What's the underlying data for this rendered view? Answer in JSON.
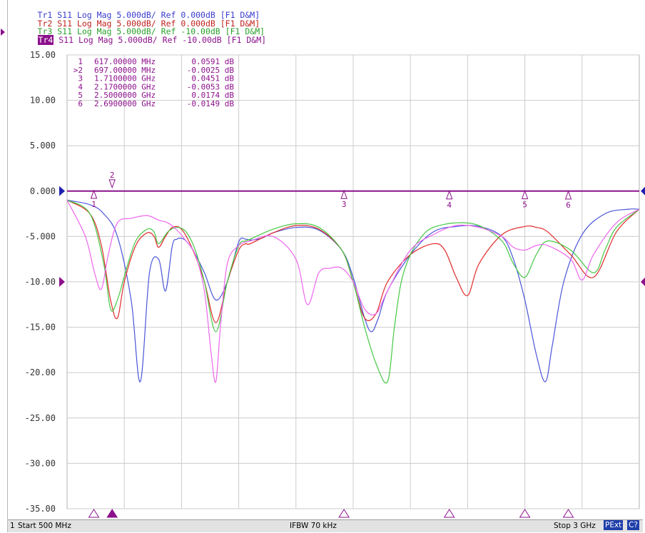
{
  "trace_headers": [
    {
      "id": "Tr1",
      "label": "Tr1",
      "text": " S11 Log Mag 5.000dB/ Ref 0.000dB [F1 D&M]",
      "color": "#3b3bd0"
    },
    {
      "id": "Tr2",
      "label": "Tr2",
      "text": " S11 Log Mag 5.000dB/ Ref 0.000dB [F1 D&M]",
      "color": "#c02020"
    },
    {
      "id": "Tr3",
      "label": "Tr3",
      "text": " S11 Log Mag 5.000dB/ Ref -10.00dB [F1 D&M]",
      "color": "#2aa02a"
    },
    {
      "id": "Tr4",
      "label": "Tr4",
      "text": " S11 Log Mag 5.000dB/ Ref -10.00dB [F1 D&M]",
      "color": "#8c108c",
      "active": true
    }
  ],
  "marker_table": [
    {
      "num": "1",
      "freq": "617.00000 MHz",
      "value": "0.0591 dB"
    },
    {
      "num": ">2",
      "freq": "697.00000 MHz",
      "value": "-0.0025 dB"
    },
    {
      "num": "3",
      "freq": "1.7100000 GHz",
      "value": "0.0451 dB"
    },
    {
      "num": "4",
      "freq": "2.1700000 GHz",
      "value": "-0.0053 dB"
    },
    {
      "num": "5",
      "freq": "2.5000000 GHz",
      "value": "0.0174 dB"
    },
    {
      "num": "6",
      "freq": "2.6900000 GHz",
      "value": "-0.0149 dB"
    }
  ],
  "status_bar": {
    "channel": "1",
    "start": "Start 500 MHz",
    "ifbw": "IFBW 70 kHz",
    "stop": "Stop 3 GHz",
    "pext": "PExt",
    "cal": "C?"
  },
  "colors": {
    "grid": "#cccccc",
    "axis_marker": "#8c108c",
    "ref_marker": "#1f1fb0"
  },
  "chart_data": {
    "type": "line",
    "x_unit": "GHz",
    "xlim": [
      0.5,
      3.0
    ],
    "ylim": [
      -35,
      15
    ],
    "y_ticks": [
      15,
      10,
      5,
      0,
      -5,
      -10,
      -15,
      -20,
      -25,
      -30,
      -35
    ],
    "y_tick_labels": [
      "15.00",
      "10.00",
      "5.000",
      "0.000",
      "-5.000",
      "-10.00",
      "-15.00",
      "-20.00",
      "-25.00",
      "-30.00",
      "-35.00"
    ],
    "grid": true,
    "markers": [
      {
        "label": "1",
        "x": 0.617,
        "y": 0.0591
      },
      {
        "label": "2",
        "x": 0.697,
        "y": -0.0025
      },
      {
        "label": "3",
        "x": 1.71,
        "y": 0.0451
      },
      {
        "label": "4",
        "x": 2.17,
        "y": -0.0053
      },
      {
        "label": "5",
        "x": 2.5,
        "y": 0.0174
      },
      {
        "label": "6",
        "x": 2.69,
        "y": -0.0149
      }
    ],
    "series": [
      {
        "id": "Tr1",
        "color": "#4a55d8",
        "x": [
          0.5,
          0.6,
          0.66,
          0.72,
          0.78,
          0.82,
          0.86,
          0.9,
          0.93,
          0.96,
          0.98,
          1.0,
          1.02,
          1.05,
          1.1,
          1.15,
          1.2,
          1.25,
          1.28,
          1.3,
          1.35,
          1.4,
          1.5,
          1.6,
          1.7,
          1.75,
          1.8,
          1.83,
          1.86,
          1.9,
          2.0,
          2.1,
          2.2,
          2.3,
          2.4,
          2.45,
          2.5,
          2.55,
          2.59,
          2.62,
          2.67,
          2.75,
          2.85,
          2.95,
          3.0
        ],
        "y": [
          -1.0,
          -1.5,
          -2.5,
          -5.0,
          -12.0,
          -21.0,
          -9.0,
          -7.5,
          -11.0,
          -6.0,
          -5.3,
          -5.2,
          -5.5,
          -6.5,
          -9.0,
          -12.0,
          -10.0,
          -5.6,
          -5.3,
          -5.4,
          -5.2,
          -4.6,
          -4.0,
          -4.3,
          -6.5,
          -9.5,
          -14.0,
          -15.5,
          -14.0,
          -11.0,
          -7.0,
          -4.5,
          -3.9,
          -3.9,
          -5.0,
          -7.5,
          -12.0,
          -18.0,
          -21.0,
          -17.0,
          -10.0,
          -4.8,
          -2.5,
          -2.0,
          -2.0
        ]
      },
      {
        "id": "Tr2",
        "color": "#e02a2a",
        "x": [
          0.5,
          0.6,
          0.65,
          0.69,
          0.72,
          0.75,
          0.8,
          0.85,
          0.88,
          0.9,
          0.93,
          0.96,
          1.0,
          1.05,
          1.1,
          1.15,
          1.2,
          1.25,
          1.28,
          1.3,
          1.4,
          1.5,
          1.6,
          1.7,
          1.75,
          1.8,
          1.85,
          1.9,
          2.0,
          2.1,
          2.15,
          2.2,
          2.25,
          2.3,
          2.4,
          2.5,
          2.55,
          2.6,
          2.7,
          2.8,
          2.9,
          3.0
        ],
        "y": [
          -1.0,
          -2.5,
          -6.0,
          -12.0,
          -14.0,
          -10.0,
          -6.0,
          -4.6,
          -5.0,
          -6.2,
          -5.0,
          -4.0,
          -4.2,
          -6.5,
          -10.0,
          -14.5,
          -10.0,
          -6.5,
          -5.8,
          -5.8,
          -4.6,
          -3.8,
          -4.2,
          -6.5,
          -10.0,
          -14.0,
          -13.5,
          -10.0,
          -7.0,
          -5.8,
          -6.5,
          -9.5,
          -11.5,
          -8.0,
          -4.8,
          -3.9,
          -4.0,
          -4.5,
          -7.0,
          -9.5,
          -4.5,
          -2.0
        ]
      },
      {
        "id": "Tr3",
        "color": "#44c844",
        "x": [
          0.5,
          0.6,
          0.66,
          0.69,
          0.72,
          0.76,
          0.8,
          0.85,
          0.88,
          0.9,
          0.94,
          0.98,
          1.02,
          1.06,
          1.1,
          1.15,
          1.2,
          1.25,
          1.28,
          1.3,
          1.4,
          1.5,
          1.6,
          1.7,
          1.75,
          1.8,
          1.85,
          1.9,
          1.93,
          1.96,
          2.0,
          2.05,
          2.1,
          2.2,
          2.3,
          2.4,
          2.45,
          2.5,
          2.55,
          2.6,
          2.7,
          2.8,
          2.85,
          2.9,
          3.0
        ],
        "y": [
          -1.0,
          -2.5,
          -8.0,
          -13.0,
          -12.0,
          -8.5,
          -5.5,
          -4.2,
          -4.5,
          -5.8,
          -4.5,
          -4.0,
          -4.5,
          -6.5,
          -10.0,
          -15.5,
          -10.0,
          -6.0,
          -5.5,
          -5.3,
          -4.2,
          -3.6,
          -4.0,
          -6.5,
          -10.0,
          -15.0,
          -19.0,
          -21.0,
          -15.0,
          -10.0,
          -7.0,
          -5.0,
          -4.0,
          -3.5,
          -3.8,
          -5.5,
          -8.0,
          -9.5,
          -7.0,
          -5.5,
          -6.5,
          -9.0,
          -6.5,
          -4.0,
          -2.0
        ]
      },
      {
        "id": "Tr4",
        "color": "#ee66ee",
        "x": [
          0.5,
          0.58,
          0.62,
          0.65,
          0.68,
          0.72,
          0.78,
          0.85,
          0.9,
          0.94,
          0.98,
          1.02,
          1.06,
          1.1,
          1.13,
          1.15,
          1.17,
          1.2,
          1.25,
          1.3,
          1.4,
          1.5,
          1.55,
          1.6,
          1.65,
          1.7,
          1.75,
          1.8,
          1.85,
          1.9,
          2.0,
          2.1,
          2.2,
          2.3,
          2.4,
          2.45,
          2.5,
          2.55,
          2.6,
          2.7,
          2.75,
          2.8,
          2.9,
          3.0
        ],
        "y": [
          -1.0,
          -5.0,
          -9.0,
          -10.8,
          -7.0,
          -3.5,
          -3.0,
          -2.7,
          -3.2,
          -3.5,
          -4.3,
          -5.5,
          -7.0,
          -11.0,
          -18.0,
          -21.0,
          -15.0,
          -8.0,
          -6.0,
          -5.5,
          -5.0,
          -7.5,
          -12.5,
          -9.0,
          -8.5,
          -8.5,
          -10.0,
          -13.0,
          -13.5,
          -11.0,
          -6.5,
          -4.8,
          -3.8,
          -4.0,
          -5.0,
          -6.2,
          -6.5,
          -6.0,
          -6.0,
          -7.5,
          -9.8,
          -7.0,
          -3.5,
          -2.0
        ]
      },
      {
        "id": "Tr-ref",
        "color": "#8c108c",
        "x": [
          0.5,
          3.0
        ],
        "y": [
          0.0,
          0.0
        ]
      }
    ]
  }
}
